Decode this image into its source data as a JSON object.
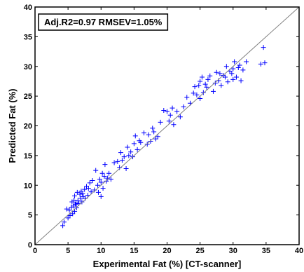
{
  "chart_data": {
    "type": "scatter",
    "title": "",
    "xlabel": "Experimental Fat (%) [CT-scanner]",
    "ylabel": "Predicted Fat (%)",
    "xlim": [
      0,
      40
    ],
    "ylim": [
      0,
      40
    ],
    "xticks": [
      "0",
      "5",
      "10",
      "15",
      "20",
      "25",
      "30",
      "35",
      "40"
    ],
    "yticks": [
      "0",
      "5",
      "10",
      "15",
      "20",
      "25",
      "30",
      "35",
      "40"
    ],
    "grid": false,
    "reference_line": "y = x",
    "annotation": "Adj.R2=0.97 RMSEV=1.05%",
    "marker": "+",
    "colors": {
      "points": "#0000ff",
      "reference_line": "#808080",
      "axes": "#000000"
    },
    "series": [
      {
        "x": [
          4.2,
          4.4,
          4.8,
          5.0,
          5.2,
          5.3,
          5.5,
          5.6,
          5.7,
          5.8,
          5.9,
          6.0,
          6.0,
          6.1,
          6.2,
          6.3,
          6.4,
          6.5,
          6.6,
          6.8,
          6.9,
          7.0,
          7.1,
          7.2,
          7.3,
          7.5,
          7.6,
          7.8,
          8.0,
          8.1,
          8.3,
          8.5,
          8.7,
          9.0,
          9.2,
          9.5,
          9.6,
          9.8,
          10.0,
          10.0,
          10.2,
          10.3,
          10.5,
          10.6,
          10.8,
          11.0,
          11.2,
          11.5,
          12.0,
          12.5,
          12.8,
          13.0,
          13.2,
          13.5,
          13.8,
          14.0,
          14.2,
          14.5,
          14.8,
          15.0,
          15.2,
          15.5,
          15.8,
          16.0,
          16.5,
          17.0,
          17.2,
          17.5,
          17.8,
          18.0,
          18.3,
          18.6,
          19.0,
          19.5,
          20.0,
          20.3,
          20.5,
          20.8,
          21.0,
          21.5,
          22.0,
          22.5,
          23.0,
          23.5,
          24.0,
          24.2,
          24.5,
          24.8,
          25.0,
          25.0,
          25.3,
          25.5,
          25.8,
          26.0,
          26.2,
          26.5,
          27.0,
          27.3,
          27.5,
          27.8,
          28.0,
          28.2,
          28.5,
          28.8,
          29.0,
          29.2,
          29.5,
          29.8,
          30.0,
          30.0,
          30.2,
          30.5,
          30.8,
          31.0,
          31.2,
          31.5,
          32.0,
          34.2,
          34.6,
          34.8
        ],
        "y": [
          3.2,
          3.8,
          6.0,
          4.5,
          5.8,
          4.9,
          6.3,
          7.2,
          5.2,
          6.5,
          7.5,
          5.6,
          8.2,
          6.8,
          7.0,
          6.2,
          8.8,
          7.4,
          6.9,
          8.5,
          7.8,
          9.0,
          7.2,
          8.6,
          8.1,
          9.3,
          7.8,
          9.8,
          8.3,
          9.5,
          10.4,
          8.9,
          10.8,
          9.2,
          12.5,
          10.0,
          8.8,
          11.0,
          10.5,
          8.1,
          12.0,
          9.5,
          11.5,
          13.5,
          10.7,
          11.2,
          12.0,
          11.0,
          13.8,
          14.0,
          13.0,
          15.5,
          14.2,
          14.8,
          12.8,
          16.4,
          15.0,
          15.6,
          14.8,
          17.0,
          18.3,
          16.0,
          17.5,
          17.2,
          18.8,
          16.9,
          18.5,
          17.4,
          19.6,
          19.0,
          17.8,
          18.2,
          20.6,
          22.6,
          22.4,
          20.8,
          21.8,
          23.0,
          20.2,
          22.4,
          21.5,
          23.2,
          24.8,
          23.8,
          25.5,
          26.6,
          25.2,
          26.8,
          27.5,
          24.6,
          28.2,
          25.6,
          27.0,
          26.5,
          27.8,
          28.4,
          25.8,
          27.2,
          29.0,
          27.6,
          28.8,
          26.8,
          28.5,
          28.2,
          30.0,
          27.4,
          29.2,
          28.8,
          29.6,
          27.8,
          30.8,
          28.2,
          29.8,
          30.2,
          27.6,
          29.4,
          30.8,
          30.4,
          33.2,
          30.6
        ]
      }
    ]
  }
}
